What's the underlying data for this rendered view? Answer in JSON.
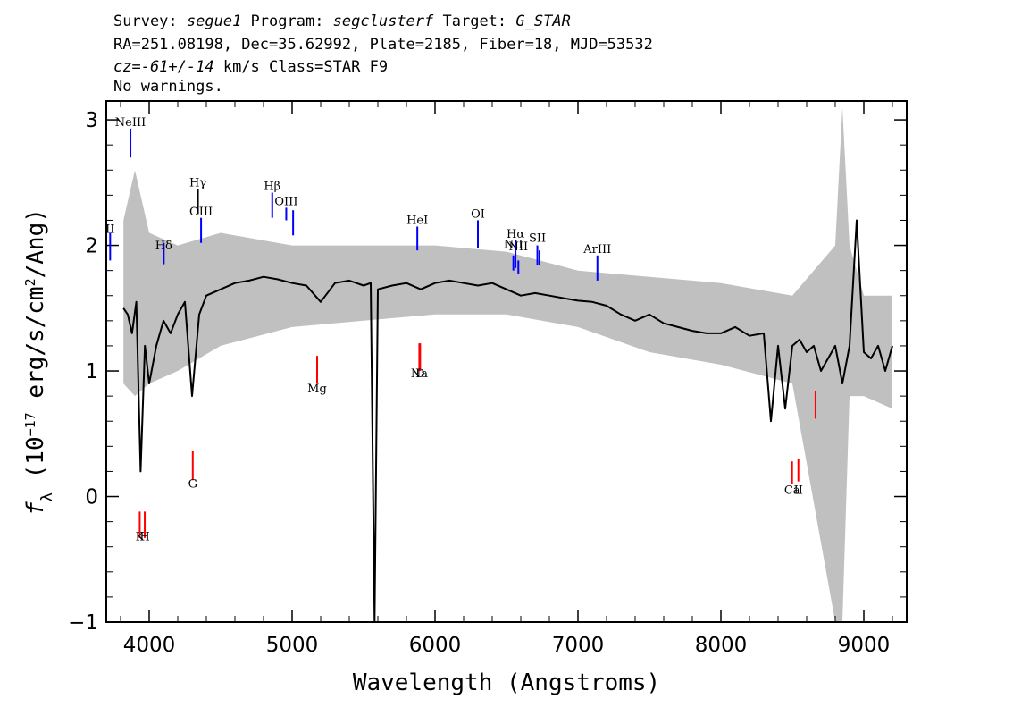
{
  "header": {
    "line1": [
      {
        "text": "Survey: ",
        "italic": false
      },
      {
        "text": "segue1",
        "italic": true
      },
      {
        "text": " Program: ",
        "italic": false
      },
      {
        "text": "segclusterf",
        "italic": true
      },
      {
        "text": " Target: ",
        "italic": false
      },
      {
        "text": "G_STAR",
        "italic": true
      }
    ],
    "line2": "RA=251.08198, Dec=35.62992, Plate=2185, Fiber=18, MJD=53532",
    "line3": [
      {
        "text": "cz=-61+/-14",
        "italic": true
      },
      {
        "text": " km/s Class=STAR F9",
        "italic": false
      }
    ],
    "line4": "No warnings."
  },
  "chart_data": {
    "type": "line",
    "xlabel": "Wavelength (Angstroms)",
    "ylabel_parts": {
      "f": "f",
      "sub": "λ",
      "pre": " (10",
      "exp1": "−17",
      "mid": " erg/s/cm",
      "exp2": "2",
      "post": "/Ang)"
    },
    "xlim": [
      3700,
      9300
    ],
    "ylim": [
      -1.0,
      3.15
    ],
    "xticks": [
      4000,
      5000,
      6000,
      7000,
      8000,
      9000
    ],
    "yticks": [
      -1,
      0,
      1,
      2,
      3
    ],
    "xtick_labels": [
      "4000",
      "5000",
      "6000",
      "7000",
      "8000",
      "9000"
    ],
    "ytick_labels": [
      "−1",
      "0",
      "1",
      "2",
      "3"
    ],
    "grid": false,
    "series": [
      {
        "role": "flux",
        "color": "#000000",
        "x": [
          3820,
          3850,
          3880,
          3910,
          3940,
          3970,
          4000,
          4050,
          4100,
          4150,
          4200,
          4250,
          4300,
          4350,
          4400,
          4500,
          4600,
          4700,
          4800,
          4900,
          5000,
          5100,
          5200,
          5300,
          5400,
          5500,
          5550,
          5577,
          5600,
          5700,
          5800,
          5900,
          6000,
          6100,
          6200,
          6300,
          6400,
          6500,
          6600,
          6700,
          6800,
          6900,
          7000,
          7100,
          7200,
          7300,
          7400,
          7500,
          7600,
          7700,
          7800,
          7900,
          8000,
          8100,
          8200,
          8300,
          8350,
          8400,
          8450,
          8500,
          8550,
          8600,
          8650,
          8700,
          8750,
          8800,
          8850,
          8900,
          8950,
          9000,
          9050,
          9100,
          9150,
          9200
        ],
        "y": [
          1.5,
          1.45,
          1.3,
          1.55,
          0.2,
          1.2,
          0.9,
          1.2,
          1.4,
          1.3,
          1.45,
          1.55,
          0.8,
          1.45,
          1.6,
          1.65,
          1.7,
          1.72,
          1.75,
          1.73,
          1.7,
          1.68,
          1.55,
          1.7,
          1.72,
          1.68,
          1.7,
          -1.0,
          1.65,
          1.68,
          1.7,
          1.65,
          1.7,
          1.72,
          1.7,
          1.68,
          1.7,
          1.65,
          1.6,
          1.62,
          1.6,
          1.58,
          1.56,
          1.55,
          1.52,
          1.45,
          1.4,
          1.45,
          1.38,
          1.35,
          1.32,
          1.3,
          1.3,
          1.35,
          1.28,
          1.3,
          0.6,
          1.2,
          0.7,
          1.2,
          1.25,
          1.15,
          1.2,
          1.0,
          1.1,
          1.2,
          0.9,
          1.2,
          2.2,
          1.15,
          1.1,
          1.2,
          1.0,
          1.2
        ]
      },
      {
        "role": "error",
        "color": "#c0c0c0",
        "x": [
          3820,
          3900,
          4000,
          4200,
          4500,
          5000,
          5500,
          6000,
          6500,
          7000,
          7500,
          8000,
          8500,
          8800,
          8850,
          8900,
          9000,
          9200
        ],
        "lower": [
          0.9,
          0.8,
          0.9,
          1.0,
          1.2,
          1.35,
          1.4,
          1.45,
          1.45,
          1.35,
          1.15,
          1.05,
          0.9,
          -1.0,
          -1.0,
          0.8,
          0.8,
          0.7
        ],
        "upper": [
          2.2,
          2.6,
          2.1,
          2.0,
          2.1,
          2.0,
          2.0,
          2.0,
          1.95,
          1.8,
          1.75,
          1.7,
          1.6,
          2.0,
          3.1,
          2.0,
          1.6,
          1.6
        ]
      }
    ],
    "annotations": [
      {
        "label": "NeIII",
        "x": 3869,
        "y0": 2.7,
        "y1": 2.93,
        "label_y": 2.95,
        "color": "#0000ff"
      },
      {
        "label": "II",
        "x": 3727,
        "y0": 1.88,
        "y1": 2.1,
        "label_y": 2.1,
        "color": "#0000ff"
      },
      {
        "label": "Hδ",
        "x": 4102,
        "y0": 1.85,
        "y1": 2.02,
        "label_y": 1.97,
        "color": "#0000ff"
      },
      {
        "label": "Hγ",
        "x": 4341,
        "y0": 2.25,
        "y1": 2.45,
        "label_y": 2.47,
        "color": "#000000"
      },
      {
        "label": "OIII",
        "x": 4363,
        "y0": 2.02,
        "y1": 2.22,
        "label_y": 2.24,
        "color": "#0000ff"
      },
      {
        "label": "Hβ",
        "x": 4861,
        "y0": 2.22,
        "y1": 2.42,
        "label_y": 2.44,
        "color": "#0000ff"
      },
      {
        "label": "OIII",
        "x": 4959,
        "y0": 2.2,
        "y1": 2.3,
        "label_y": 2.32,
        "color": "#0000ff"
      },
      {
        "label": "",
        "x": 5007,
        "y0": 2.08,
        "y1": 2.28,
        "label_y": 2.3,
        "color": "#0000ff"
      },
      {
        "label": "HeI",
        "x": 5876,
        "y0": 1.96,
        "y1": 2.15,
        "label_y": 2.17,
        "color": "#0000ff"
      },
      {
        "label": "OI",
        "x": 6300,
        "y0": 1.98,
        "y1": 2.2,
        "label_y": 2.22,
        "color": "#0000ff"
      },
      {
        "label": "NII",
        "x": 6548,
        "y0": 1.8,
        "y1": 1.92,
        "label_y": 1.98,
        "color": "#0000ff"
      },
      {
        "label": "Hα",
        "x": 6563,
        "y0": 1.82,
        "y1": 2.04,
        "label_y": 2.06,
        "color": "#0000ff"
      },
      {
        "label": "NII",
        "x": 6583,
        "y0": 1.77,
        "y1": 1.88,
        "label_y": 1.96,
        "color": "#0000ff"
      },
      {
        "label": "SII",
        "x": 6716,
        "y0": 1.84,
        "y1": 2.0,
        "label_y": 2.03,
        "color": "#0000ff"
      },
      {
        "label": "",
        "x": 6731,
        "y0": 1.84,
        "y1": 1.96,
        "label_y": 1.96,
        "color": "#0000ff"
      },
      {
        "label": "ArIII",
        "x": 7136,
        "y0": 1.72,
        "y1": 1.92,
        "label_y": 1.94,
        "color": "#0000ff"
      },
      {
        "label": "K",
        "x": 3934,
        "y0": -0.33,
        "y1": -0.12,
        "label_y": -0.35,
        "color": "#ff0000"
      },
      {
        "label": "H",
        "x": 3969,
        "y0": -0.33,
        "y1": -0.12,
        "label_y": -0.35,
        "color": "#ff0000"
      },
      {
        "label": "G",
        "x": 4305,
        "y0": 0.13,
        "y1": 0.36,
        "label_y": 0.07,
        "color": "#ff0000"
      },
      {
        "label": "Mg",
        "x": 5175,
        "y0": 0.9,
        "y1": 1.12,
        "label_y": 0.83,
        "color": "#ff0000"
      },
      {
        "label": "Na",
        "x": 5890,
        "y0": 1.0,
        "y1": 1.22,
        "label_y": 0.95,
        "color": "#ff0000"
      },
      {
        "label": "D",
        "x": 5896,
        "y0": 1.0,
        "y1": 1.22,
        "label_y": 0.95,
        "color": "#ff0000"
      },
      {
        "label": "Ca",
        "x": 8498,
        "y0": 0.1,
        "y1": 0.28,
        "label_y": 0.02,
        "color": "#ff0000"
      },
      {
        "label": "II",
        "x": 8542,
        "y0": 0.12,
        "y1": 0.3,
        "label_y": 0.02,
        "color": "#ff0000"
      },
      {
        "label": "",
        "x": 8662,
        "y0": 0.62,
        "y1": 0.84,
        "label_y": 0.62,
        "color": "#ff0000"
      }
    ]
  }
}
